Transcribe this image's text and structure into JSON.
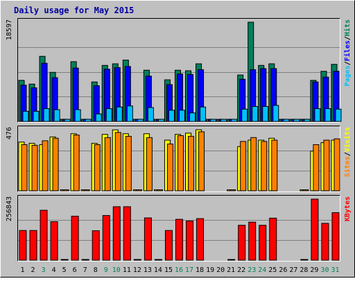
{
  "chart_data": [
    {
      "type": "bar",
      "title": "Daily usage for May 2015",
      "ymax_label": "18597",
      "legend": [
        "Pages",
        "/",
        "Files",
        "/",
        "Hits"
      ],
      "categories": [
        "1",
        "2",
        "3",
        "4",
        "5",
        "6",
        "7",
        "8",
        "9",
        "10",
        "11",
        "12",
        "13",
        "14",
        "15",
        "16",
        "17",
        "18",
        "19",
        "20",
        "21",
        "22",
        "23",
        "24",
        "25",
        "26",
        "27",
        "28",
        "29",
        "30",
        "31"
      ],
      "weekend_days": [
        "3",
        "9",
        "10",
        "16",
        "17",
        "23",
        "24",
        "30",
        "31"
      ],
      "ylim": [
        0,
        18597
      ],
      "series": [
        {
          "name": "Hits",
          "values": [
            7700,
            7000,
            12200,
            9200,
            400,
            11200,
            400,
            7400,
            10500,
            10800,
            11500,
            400,
            9600,
            400,
            7800,
            9600,
            9500,
            10800,
            400,
            400,
            400,
            8700,
            18597,
            10500,
            10800,
            400,
            400,
            400,
            7700,
            9400,
            10700
          ]
        },
        {
          "name": "Files",
          "values": [
            6800,
            6300,
            10900,
            8200,
            400,
            10000,
            400,
            6700,
            9800,
            10100,
            10300,
            400,
            8500,
            400,
            6900,
            8900,
            8800,
            9700,
            400,
            400,
            400,
            7900,
            9700,
            9900,
            9900,
            400,
            400,
            400,
            7400,
            8300,
            9400
          ]
        },
        {
          "name": "Pages",
          "values": [
            1900,
            1900,
            2400,
            2200,
            400,
            2200,
            400,
            1400,
            2400,
            2700,
            2900,
            400,
            2600,
            400,
            2100,
            2100,
            1600,
            2700,
            400,
            400,
            400,
            2300,
            2800,
            2800,
            3000,
            400,
            400,
            400,
            2400,
            2400,
            2300
          ]
        }
      ]
    },
    {
      "type": "bar",
      "ymax_label": "476",
      "legend": [
        "Sites",
        "/",
        "Visits"
      ],
      "ylim": [
        0,
        476
      ],
      "series": [
        {
          "name": "Visits",
          "values": [
            380,
            370,
            360,
            420,
            8,
            445,
            8,
            370,
            440,
            475,
            445,
            8,
            445,
            8,
            395,
            440,
            450,
            476,
            0,
            0,
            8,
            345,
            395,
            395,
            410,
            0,
            0,
            8,
            310,
            375,
            395
          ]
        },
        {
          "name": "Sites",
          "values": [
            360,
            355,
            390,
            410,
            8,
            435,
            8,
            360,
            415,
            455,
            425,
            8,
            415,
            8,
            365,
            430,
            425,
            460,
            0,
            0,
            8,
            385,
            415,
            385,
            395,
            0,
            0,
            8,
            360,
            395,
            405
          ]
        }
      ]
    },
    {
      "type": "bar",
      "ymax_label": "256843",
      "legend": [
        "KBytes"
      ],
      "ylim": [
        0,
        256843
      ],
      "series": [
        {
          "name": "KBytes",
          "values": [
            125000,
            125000,
            210000,
            162000,
            3000,
            185000,
            3000,
            124000,
            188000,
            225000,
            225000,
            3000,
            178000,
            3000,
            125000,
            172000,
            165000,
            175000,
            0,
            0,
            3000,
            147000,
            160000,
            147000,
            177000,
            0,
            0,
            3000,
            256843,
            155000,
            200000
          ]
        }
      ]
    }
  ],
  "colors": {
    "hits": "#00805c",
    "files": "#0000ff",
    "pages": "#00c0ff",
    "visits": "#ffff00",
    "sites": "#ff8000",
    "kbytes": "#ff0000",
    "title": "#0000a0",
    "weekend_label": "#00805c",
    "weekday_label": "#000000",
    "chart_bg": "#c0c0c0"
  }
}
